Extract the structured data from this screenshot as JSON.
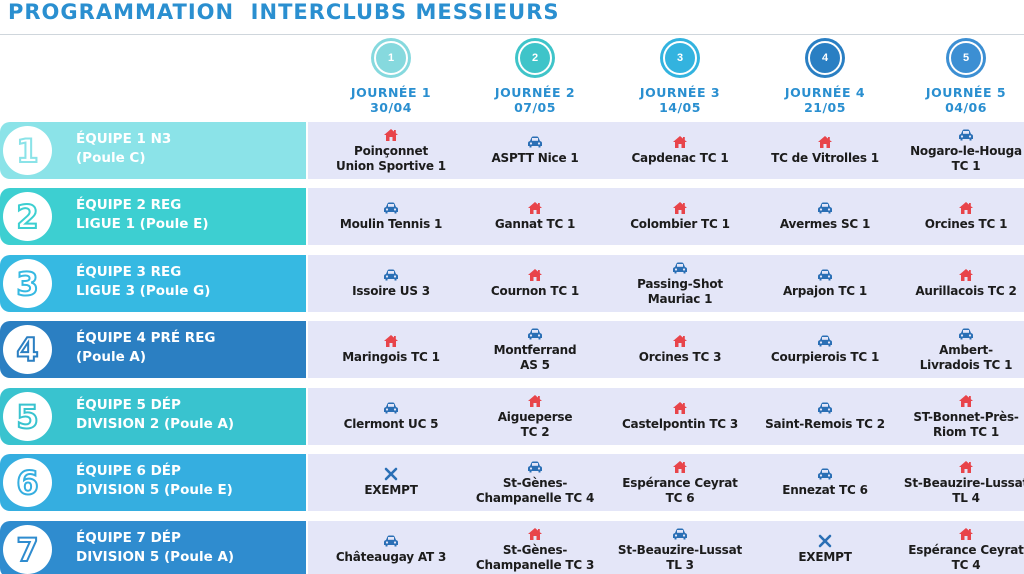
{
  "title": "PROGRAMMATION  INTERCLUBS MESSIEURS",
  "days": [
    {
      "num": "1",
      "label": "JOURNÉE 1",
      "date": "30/04",
      "color": "#86d9de"
    },
    {
      "num": "2",
      "label": "JOURNÉE 2",
      "date": "07/05",
      "color": "#3fc4c9"
    },
    {
      "num": "3",
      "label": "JOURNÉE 3",
      "date": "14/05",
      "color": "#33b3df"
    },
    {
      "num": "4",
      "label": "JOURNÉE 4",
      "date": "21/05",
      "color": "#2a7fc3"
    },
    {
      "num": "5",
      "label": "JOURNÉE 5",
      "date": "04/06",
      "color": "#3c8fd3"
    }
  ],
  "colors": {
    "home_icon": "#e8444a",
    "away_icon": "#2a6fb5",
    "exempt_icon": "#2a6fb5",
    "title": "#2a8fd0"
  },
  "teams": [
    {
      "num": "1",
      "line1": "ÉQUIPE 1 N3",
      "line2": "(Poule C)",
      "color": "#8be3e8",
      "matches": [
        {
          "type": "home",
          "line1": "Poinçonnet",
          "line2": "Union Sportive 1"
        },
        {
          "type": "away",
          "line1": "ASPTT Nice 1",
          "line2": ""
        },
        {
          "type": "home",
          "line1": "Capdenac TC 1",
          "line2": ""
        },
        {
          "type": "home",
          "line1": "TC de Vitrolles 1",
          "line2": ""
        },
        {
          "type": "away",
          "line1": "Nogaro-le-Houga",
          "line2": "TC 1"
        }
      ]
    },
    {
      "num": "2",
      "line1": "ÉQUIPE 2 REG",
      "line2": "LIGUE 1 (Poule E)",
      "color": "#3dcfd1",
      "matches": [
        {
          "type": "away",
          "line1": "Moulin Tennis 1",
          "line2": ""
        },
        {
          "type": "home",
          "line1": "Gannat TC 1",
          "line2": ""
        },
        {
          "type": "home",
          "line1": "Colombier TC 1",
          "line2": ""
        },
        {
          "type": "away",
          "line1": "Avermes SC 1",
          "line2": ""
        },
        {
          "type": "home",
          "line1": "Orcines TC 1",
          "line2": ""
        }
      ]
    },
    {
      "num": "3",
      "line1": "ÉQUIPE 3 REG",
      "line2": "LIGUE 3 (Poule G)",
      "color": "#36b9e2",
      "matches": [
        {
          "type": "away",
          "line1": "Issoire US 3",
          "line2": ""
        },
        {
          "type": "home",
          "line1": "Cournon TC 1",
          "line2": ""
        },
        {
          "type": "away",
          "line1": "Passing-Shot",
          "line2": "Mauriac 1"
        },
        {
          "type": "away",
          "line1": "Arpajon TC 1",
          "line2": ""
        },
        {
          "type": "home",
          "line1": "Aurillacois TC 2",
          "line2": ""
        }
      ]
    },
    {
      "num": "4",
      "line1": "ÉQUIPE 4 PRÉ REG",
      "line2": "(Poule A)",
      "color": "#2b7fc2",
      "matches": [
        {
          "type": "home",
          "line1": "Maringois TC 1",
          "line2": ""
        },
        {
          "type": "away",
          "line1": "Montferrand",
          "line2": "AS 5"
        },
        {
          "type": "home",
          "line1": "Orcines TC 3",
          "line2": ""
        },
        {
          "type": "away",
          "line1": "Courpierois TC 1",
          "line2": ""
        },
        {
          "type": "away",
          "line1": "Ambert-",
          "line2": "Livradois TC 1"
        }
      ]
    },
    {
      "num": "5",
      "line1": "ÉQUIPE 5 DÉP",
      "line2": "DIVISION 2 (Poule A)",
      "color": "#39c3cf",
      "matches": [
        {
          "type": "away",
          "line1": "Clermont UC 5",
          "line2": ""
        },
        {
          "type": "home",
          "line1": "Aigueperse",
          "line2": "TC 2"
        },
        {
          "type": "home",
          "line1": "Castelpontin TC 3",
          "line2": ""
        },
        {
          "type": "away",
          "line1": "Saint-Remois TC 2",
          "line2": ""
        },
        {
          "type": "home",
          "line1": "ST-Bonnet-Près-",
          "line2": "Riom TC 1"
        }
      ]
    },
    {
      "num": "6",
      "line1": "ÉQUIPE 6 DÉP",
      "line2": "DIVISION 5 (Poule E)",
      "color": "#35aee0",
      "matches": [
        {
          "type": "exempt",
          "line1": "EXEMPT",
          "line2": ""
        },
        {
          "type": "away",
          "line1": "St-Gènes-",
          "line2": "Champanelle TC 4"
        },
        {
          "type": "home",
          "line1": "Espérance Ceyrat",
          "line2": "TC 6"
        },
        {
          "type": "away",
          "line1": "Ennezat TC 6",
          "line2": ""
        },
        {
          "type": "home",
          "line1": "St-Beauzire-Lussat",
          "line2": "TL 4"
        }
      ]
    },
    {
      "num": "7",
      "line1": "ÉQUIPE 7 DÉP",
      "line2": "DIVISION 5 (Poule A)",
      "color": "#2f8ccf",
      "matches": [
        {
          "type": "away",
          "line1": "Châteaugay AT 3",
          "line2": ""
        },
        {
          "type": "home",
          "line1": "St-Gènes-",
          "line2": "Champanelle TC 3"
        },
        {
          "type": "away",
          "line1": "St-Beauzire-Lussat",
          "line2": "TL 3"
        },
        {
          "type": "exempt",
          "line1": "EXEMPT",
          "line2": ""
        },
        {
          "type": "home",
          "line1": "Espérance Ceyrat",
          "line2": "TC 4"
        }
      ]
    }
  ]
}
